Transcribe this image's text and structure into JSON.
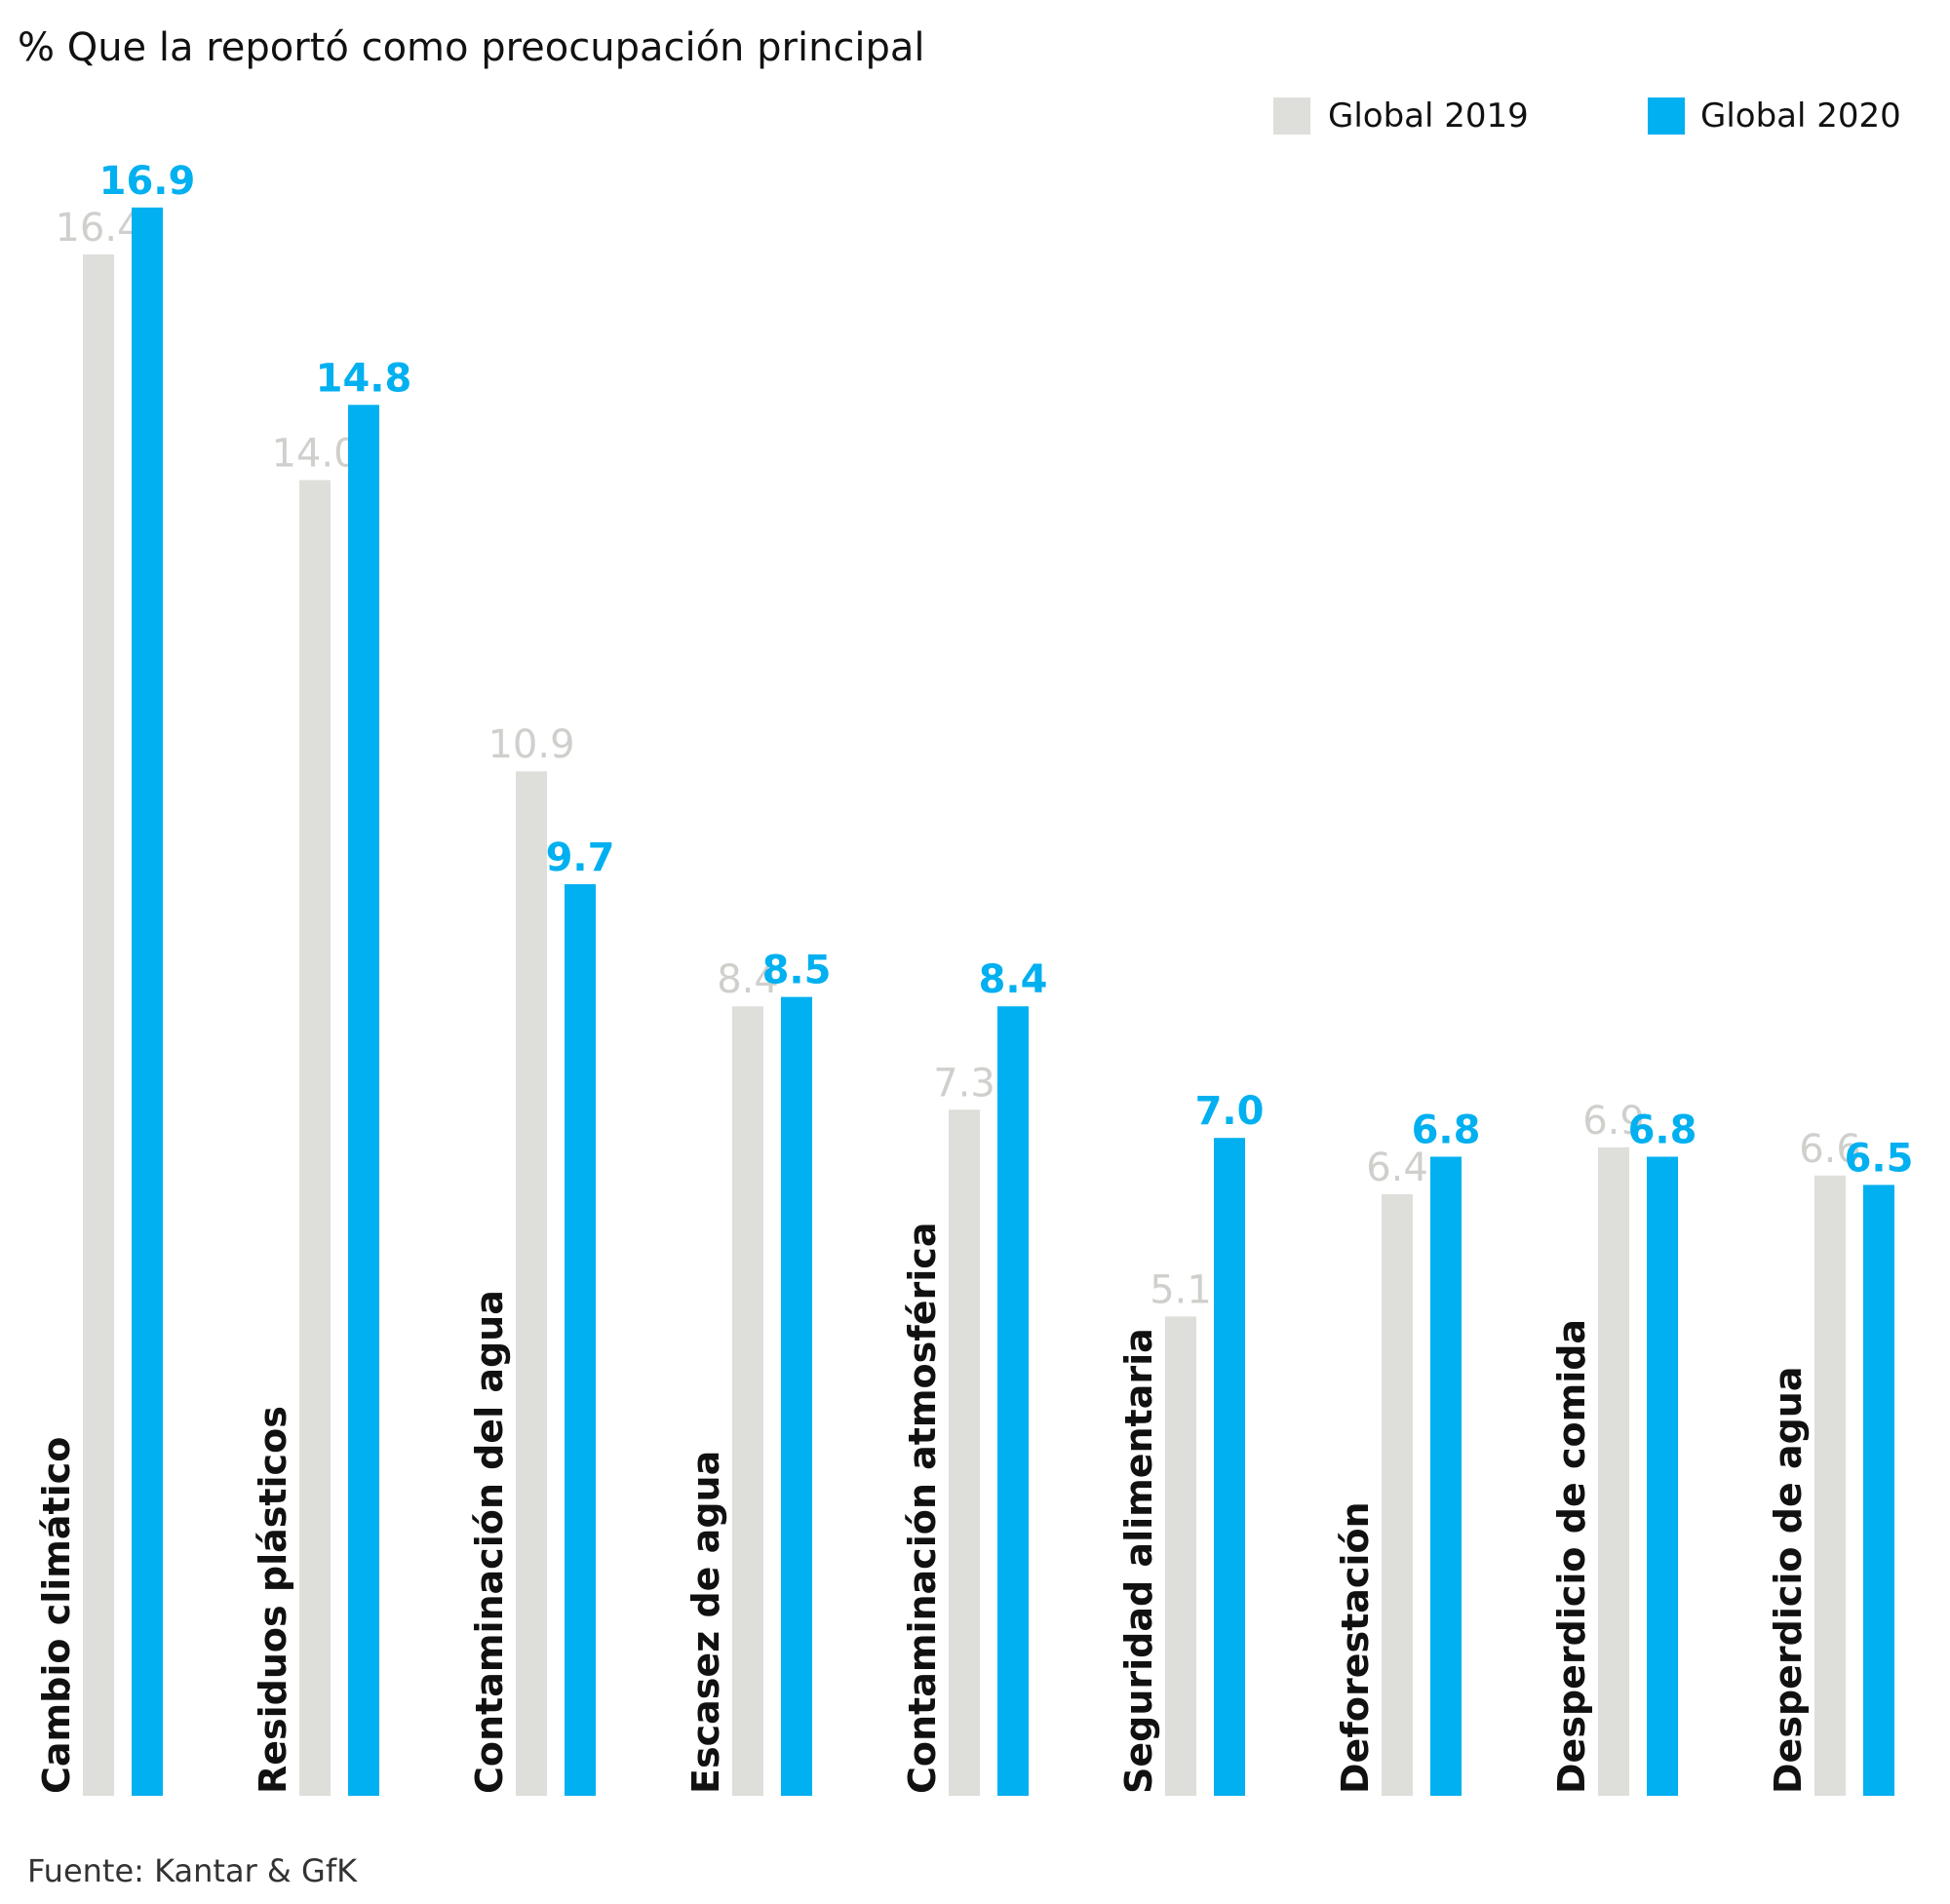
{
  "chart_data": {
    "type": "bar",
    "title": "% Que la reportó como preocupación principal",
    "categories": [
      "Cambio climático",
      "Residuos plásticos",
      "Contaminación del agua",
      "Escasez de agua",
      "Contaminación atmosférica",
      "Seguridad alimentaria",
      "Deforestación",
      "Desperdicio de comida",
      "Desperdicio de agua"
    ],
    "series": [
      {
        "name": "Global 2019",
        "color": "#dededa",
        "label_color": "#cfcfcc",
        "values": [
          16.4,
          14.0,
          10.9,
          8.4,
          7.3,
          5.1,
          6.4,
          6.9,
          6.6
        ],
        "labels": [
          "16.4",
          "14.0",
          "10.9",
          "8.4",
          "7.3",
          "5.1",
          "6.4",
          "6.9",
          "6.6"
        ]
      },
      {
        "name": "Global 2020",
        "color": "#00b0f0",
        "label_color": "#00b0f0",
        "values": [
          16.9,
          14.8,
          9.7,
          8.5,
          8.4,
          7.0,
          6.8,
          6.8,
          6.5
        ],
        "labels": [
          "16.9",
          "14.8",
          "9.7",
          "8.5",
          "8.4",
          "7.0",
          "6.8",
          "6.8",
          "6.5"
        ]
      }
    ],
    "ylim": [
      0,
      20.5
    ],
    "grid": false,
    "legend_position": "top-right",
    "source": "Fuente: Kantar & GfK"
  }
}
